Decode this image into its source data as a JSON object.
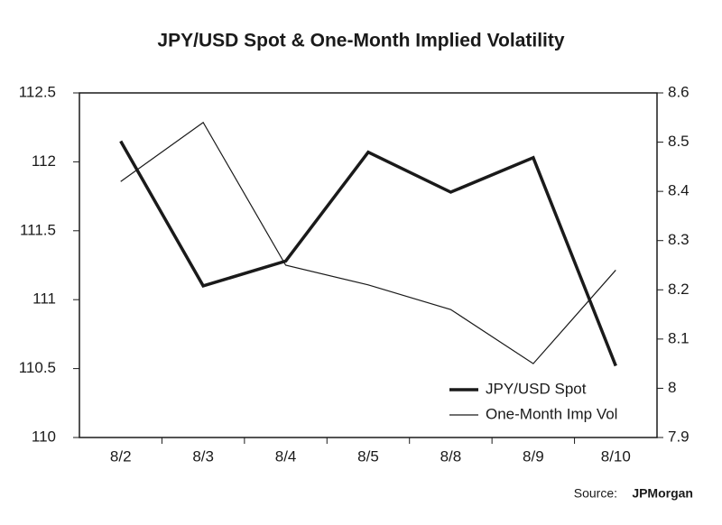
{
  "chart_data": {
    "type": "line",
    "title": "JPY/USD Spot & One-Month Implied Volatility",
    "categories": [
      "8/2",
      "8/3",
      "8/4",
      "8/5",
      "8/8",
      "8/9",
      "8/10"
    ],
    "series": [
      {
        "name": "JPY/USD Spot",
        "color": "#1a1a1a",
        "line_width": 3.5,
        "values": [
          112.15,
          111.1,
          111.28,
          112.07,
          111.78,
          112.03,
          110.52
        ]
      },
      {
        "name": "One-Month Imp Vol",
        "color": "#1a1a1a",
        "line_width": 1.2,
        "axis": "y2",
        "values": [
          8.42,
          8.54,
          8.25,
          8.21,
          8.16,
          8.05,
          8.24
        ]
      }
    ],
    "ylim": [
      110,
      112.5
    ],
    "yticks": [
      110,
      110.5,
      111,
      111.5,
      112,
      112.5
    ],
    "y2lim": [
      7.9,
      8.6
    ],
    "y2ticks": [
      7.9,
      8,
      8.1,
      8.2,
      8.3,
      8.4,
      8.5,
      8.6
    ],
    "grid": false,
    "legend": "lower right",
    "source_label": "Source:",
    "source": "JPMorgan"
  }
}
